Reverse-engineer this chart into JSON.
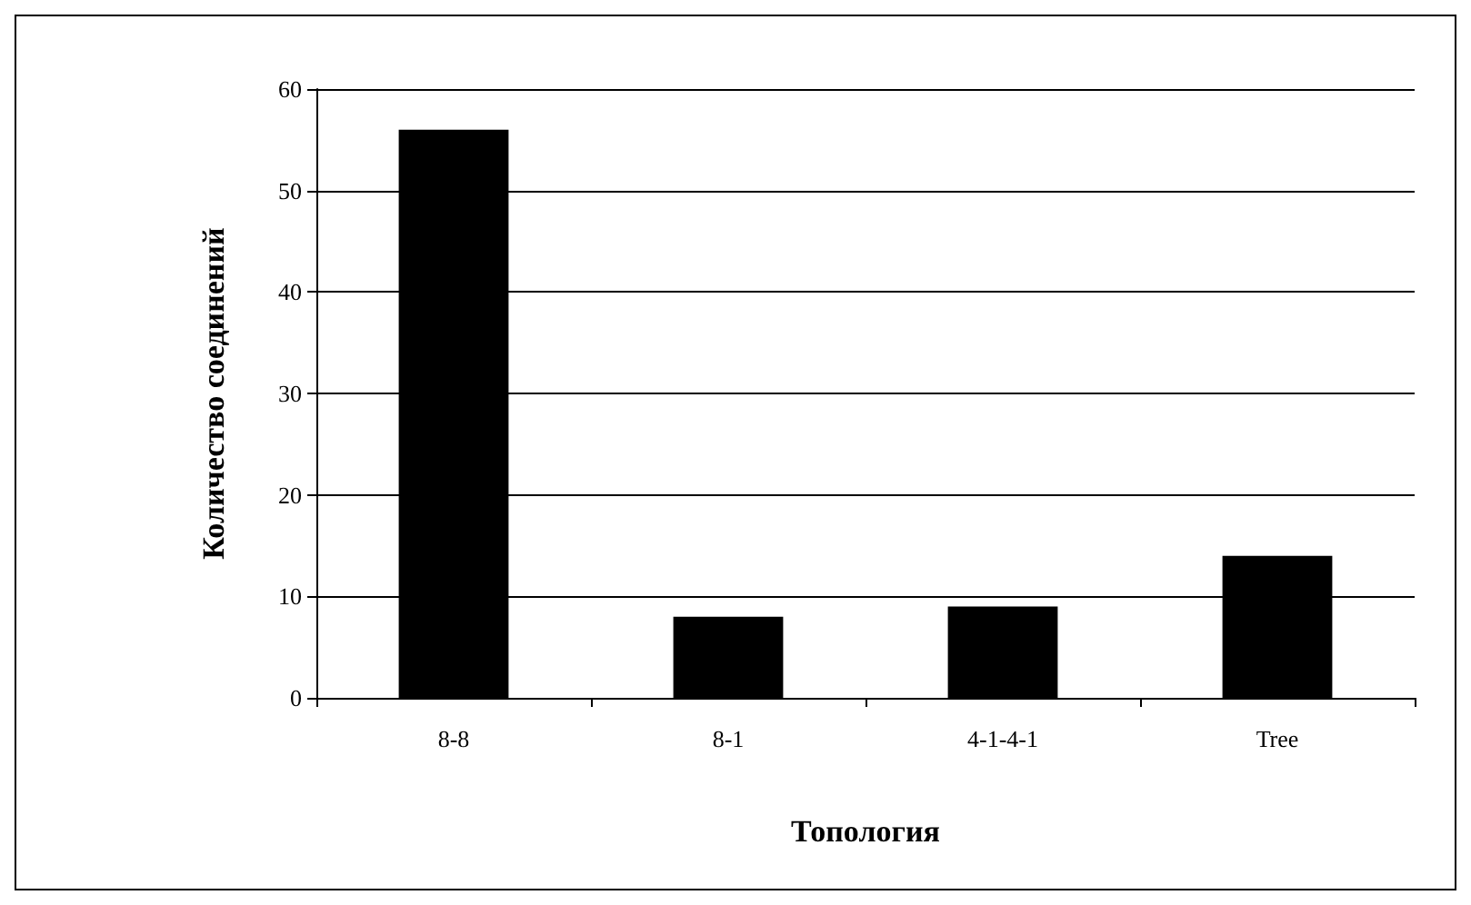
{
  "chart_data": {
    "type": "bar",
    "xlabel": "Топология",
    "ylabel": "Количество соединений",
    "categories": [
      "8-8",
      "8-1",
      "4-1-4-1",
      "Tree"
    ],
    "values": [
      56,
      8,
      9,
      14
    ],
    "color": "#000000",
    "ylim": [
      0,
      60
    ],
    "yticks": [
      0,
      10,
      20,
      30,
      40,
      50,
      60
    ],
    "grid": "y"
  }
}
